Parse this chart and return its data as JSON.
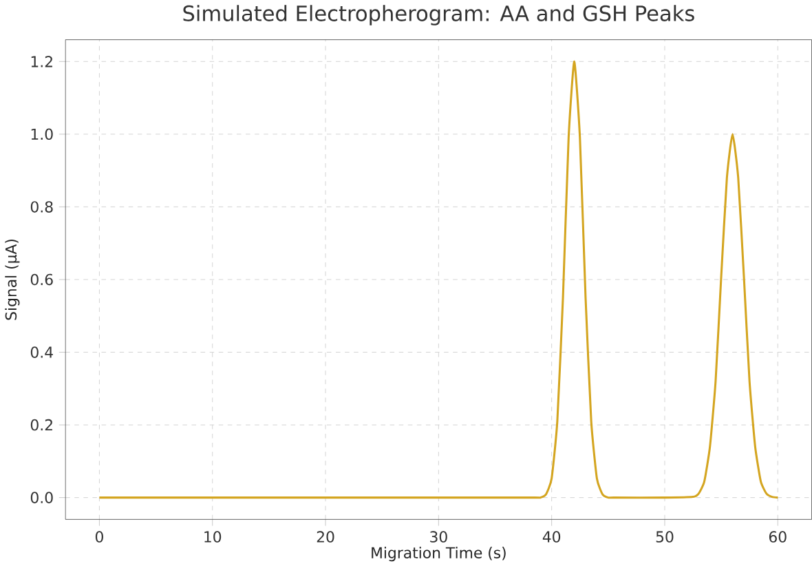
{
  "chart_data": {
    "type": "line",
    "title": "Simulated Electropherogram: AA and GSH Peaks",
    "xlabel": "Migration Time (s)",
    "ylabel": "Signal (µA)",
    "series": [
      {
        "color": "#d4a520",
        "x": [
          0,
          10,
          20,
          30,
          38.5,
          39,
          39.5,
          40,
          40.5,
          41,
          41.5,
          42,
          42.5,
          43,
          43.5,
          44,
          44.5,
          45,
          45.5,
          50,
          52.5,
          53,
          53.5,
          54,
          54.5,
          55,
          55.5,
          56,
          56.5,
          57,
          57.5,
          58,
          58.5,
          59,
          59.5,
          60
        ],
        "values": [
          0,
          0,
          0,
          0,
          0,
          0,
          0.009,
          0.053,
          0.21,
          0.55,
          0.99,
          1.2,
          0.99,
          0.55,
          0.21,
          0.053,
          0.009,
          0,
          0,
          0,
          0.002,
          0.011,
          0.044,
          0.14,
          0.32,
          0.61,
          0.88,
          1.0,
          0.88,
          0.61,
          0.32,
          0.14,
          0.044,
          0.011,
          0.002,
          0
        ]
      }
    ],
    "xlim": [
      -3,
      63
    ],
    "ylim": [
      -0.06,
      1.26
    ],
    "xticks": [
      0,
      10,
      20,
      30,
      40,
      50,
      60
    ],
    "yticks": [
      {
        "value": 0,
        "label": "0.0"
      },
      {
        "value": 0.2,
        "label": "0.2"
      },
      {
        "value": 0.4,
        "label": "0.4"
      },
      {
        "value": 0.6,
        "label": "0.6"
      },
      {
        "value": 0.8,
        "label": "0.8"
      },
      {
        "value": 1.0,
        "label": "1.0"
      },
      {
        "value": 1.2,
        "label": "1.2"
      }
    ],
    "grid": true,
    "line_style": "solid",
    "marker": "none"
  }
}
